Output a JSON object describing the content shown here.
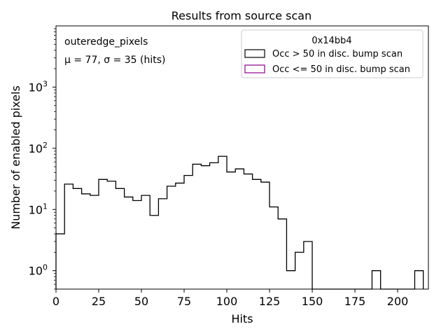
{
  "chart_data": {
    "type": "histogram",
    "title": "Results from source scan",
    "xlabel": "Hits",
    "ylabel": "Number of enabled pixels",
    "xlim": [
      0,
      218
    ],
    "ylim": [
      0.5,
      10000
    ],
    "yscale": "log",
    "xticks": [
      "0",
      "25",
      "50",
      "75",
      "100",
      "125",
      "150",
      "175",
      "200"
    ],
    "xtick_values": [
      0,
      25,
      50,
      75,
      100,
      125,
      150,
      175,
      200
    ],
    "yticks": [
      {
        "value": 1,
        "base": "10",
        "exp": "0"
      },
      {
        "value": 10,
        "base": "10",
        "exp": "1"
      },
      {
        "value": 100,
        "base": "10",
        "exp": "2"
      },
      {
        "value": 1000,
        "base": "10",
        "exp": "3"
      }
    ],
    "annotations": {
      "label": "outeredge_pixels",
      "stats": "μ = 77, σ = 35 (hits)"
    },
    "legend": {
      "title": "0x14bb4",
      "position": "top-right",
      "entries": [
        {
          "label": "Occ > 50 in disc. bump scan",
          "color": "#000000"
        },
        {
          "label": "Occ <= 50 in disc. bump scan",
          "color": "#8b008b"
        }
      ]
    },
    "bin_width": 5,
    "bins_start": 0,
    "series": [
      {
        "name": "Occ > 50 in disc. bump scan",
        "color": "#000000",
        "values": [
          4,
          26,
          22,
          18,
          17,
          31,
          29,
          22,
          16,
          14,
          17,
          8,
          15,
          24,
          27,
          36,
          55,
          52,
          58,
          74,
          41,
          46,
          38,
          31,
          28,
          11,
          7,
          1,
          2,
          3,
          0,
          0,
          0,
          0,
          0,
          0,
          0,
          1,
          0,
          0,
          0,
          0,
          1
        ]
      },
      {
        "name": "Occ <= 50 in disc. bump scan",
        "color": "#8b008b",
        "values": []
      }
    ]
  }
}
